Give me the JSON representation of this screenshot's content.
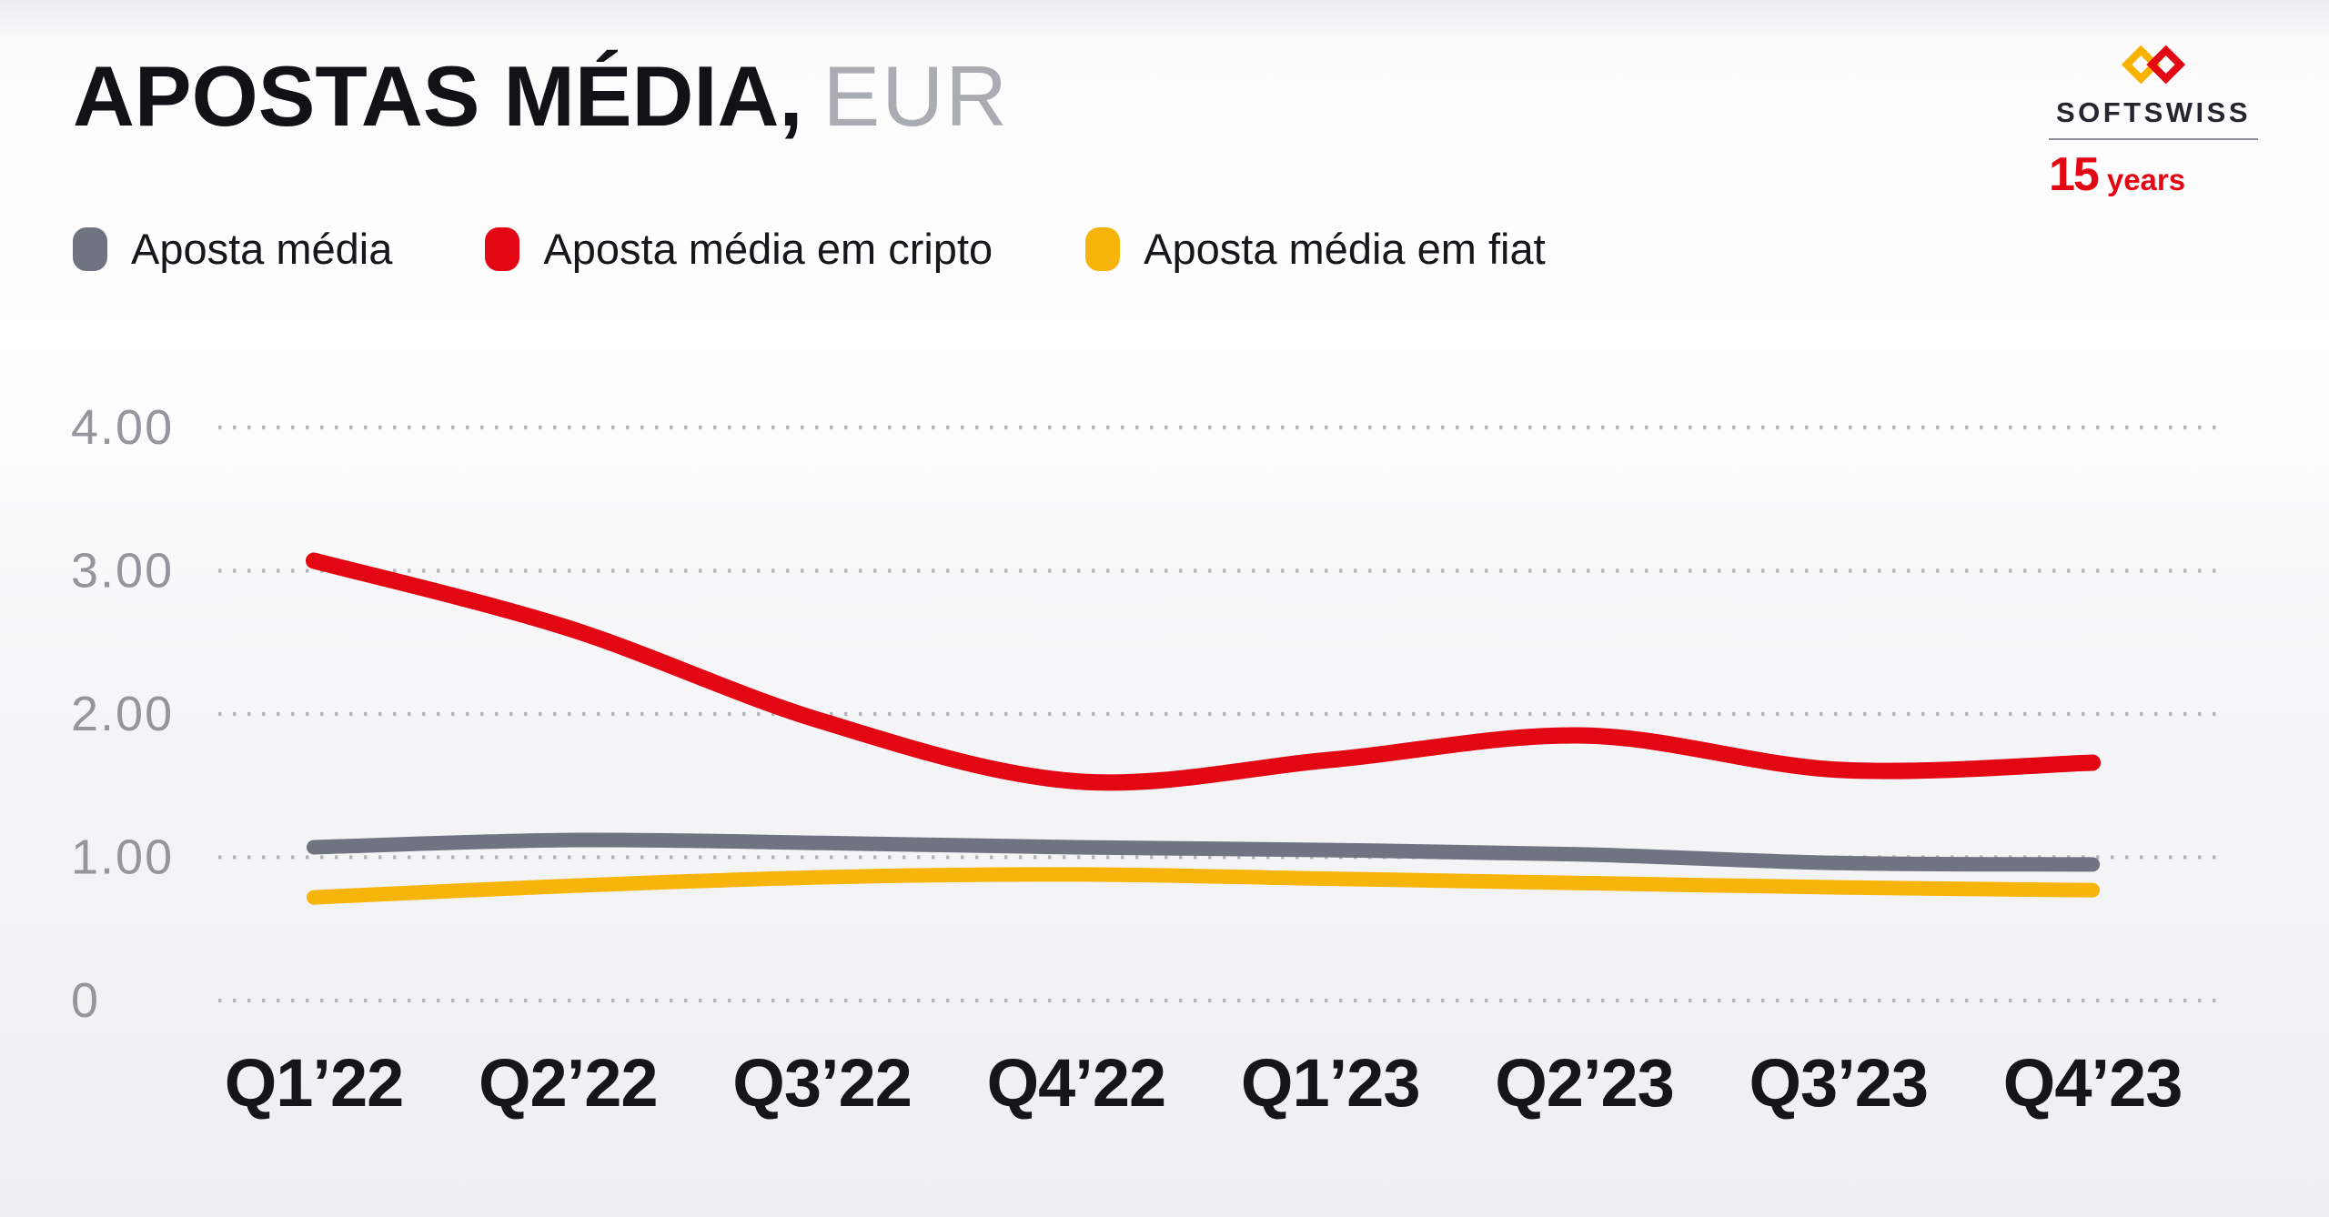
{
  "header": {
    "title_main": "APOSTAS MÉDIA,",
    "title_unit": "EUR"
  },
  "logo": {
    "brand": "SOFTSWISS",
    "years_number": "15",
    "years_label": "years",
    "colors": {
      "red": "#e30613",
      "yellow": "#f8b200",
      "dark": "#26262e"
    }
  },
  "chart_data": {
    "type": "line",
    "title": "APOSTAS MÉDIA, EUR",
    "categories": [
      "Q1’22",
      "Q2’22",
      "Q3’22",
      "Q4’22",
      "Q1’23",
      "Q2’23",
      "Q3’23",
      "Q4’23"
    ],
    "series": [
      {
        "name": "Aposta média",
        "color": "#6f7480",
        "values": [
          1.07,
          1.12,
          1.1,
          1.07,
          1.05,
          1.02,
          0.96,
          0.95
        ]
      },
      {
        "name": "Aposta média em cripto",
        "color": "#e30613",
        "values": [
          3.07,
          2.6,
          1.95,
          1.53,
          1.68,
          1.85,
          1.61,
          1.66
        ]
      },
      {
        "name": "Aposta média em fiat",
        "color": "#f7b50c",
        "values": [
          0.72,
          0.8,
          0.86,
          0.88,
          0.85,
          0.82,
          0.79,
          0.77
        ]
      }
    ],
    "y_ticks": [
      {
        "label": "4.00",
        "value": 4
      },
      {
        "label": "3.00",
        "value": 3
      },
      {
        "label": "2.00",
        "value": 2
      },
      {
        "label": "1.00",
        "value": 1
      },
      {
        "label": "0",
        "value": 0
      }
    ],
    "ylim": [
      0,
      4.4
    ],
    "grid": "horizontal-dotted",
    "legend_position": "top-left",
    "axis_color": "#94969c",
    "grid_color": "#b5b6bc",
    "x_label_color": "#15151a"
  }
}
